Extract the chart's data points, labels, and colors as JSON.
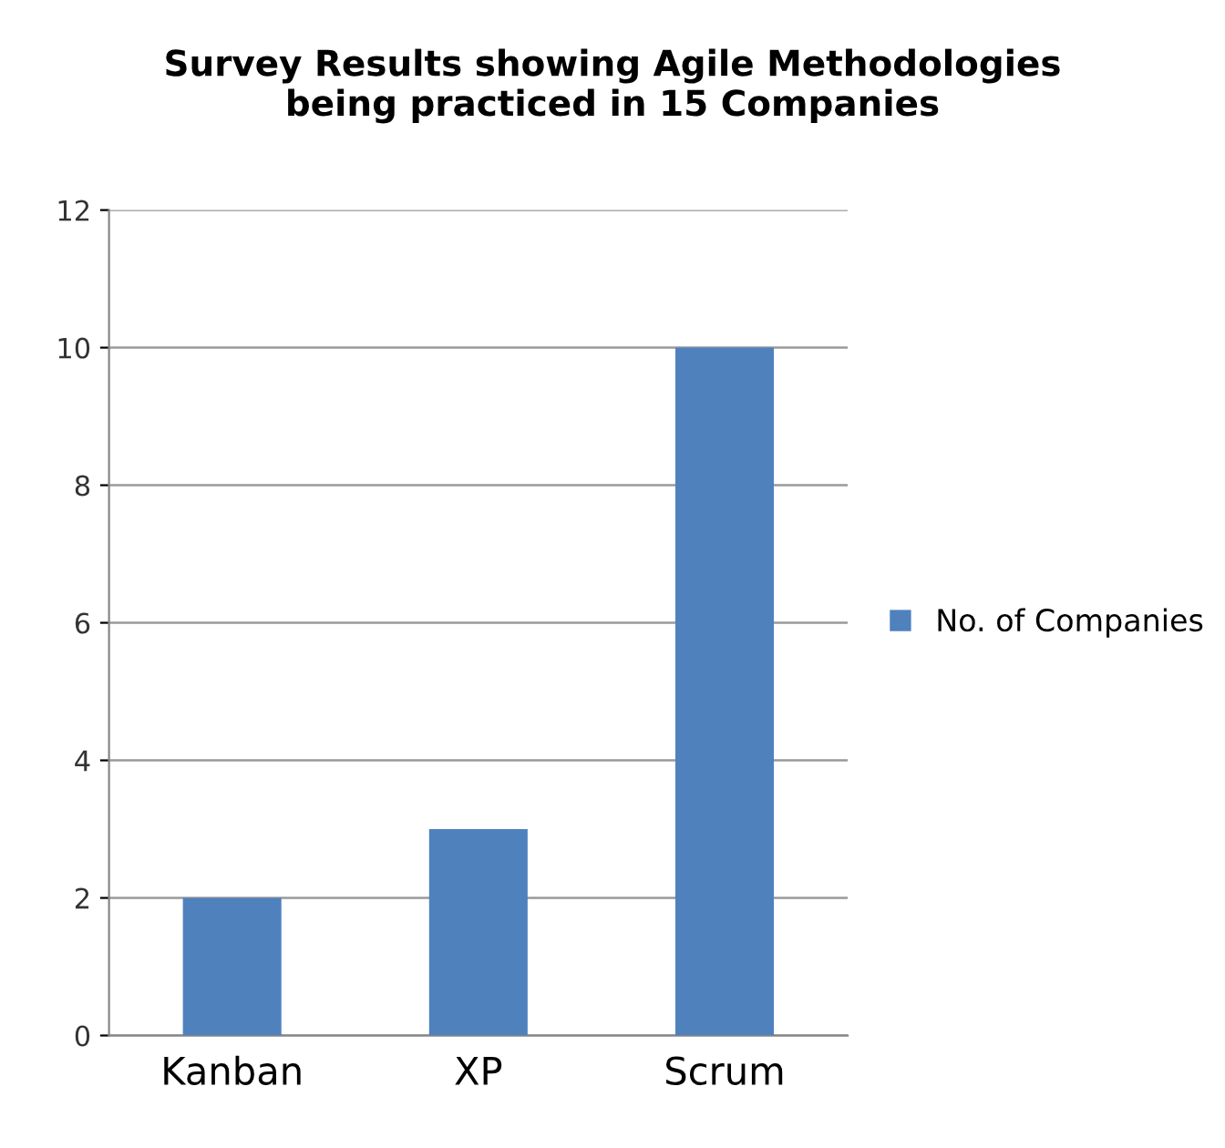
{
  "chart_data": {
    "type": "bar",
    "title": "Survey Results showing Agile Methodologies\nbeing practiced in 15 Companies",
    "categories": [
      "Kanban",
      "XP",
      "Scrum"
    ],
    "series": [
      {
        "name": "No. of Companies",
        "color": "#4f81bd",
        "values": [
          2,
          3,
          10
        ]
      }
    ],
    "ylim": [
      0,
      12
    ],
    "yticks": [
      0,
      2,
      4,
      6,
      8,
      10,
      12
    ],
    "grid": "y",
    "legend": "right"
  }
}
